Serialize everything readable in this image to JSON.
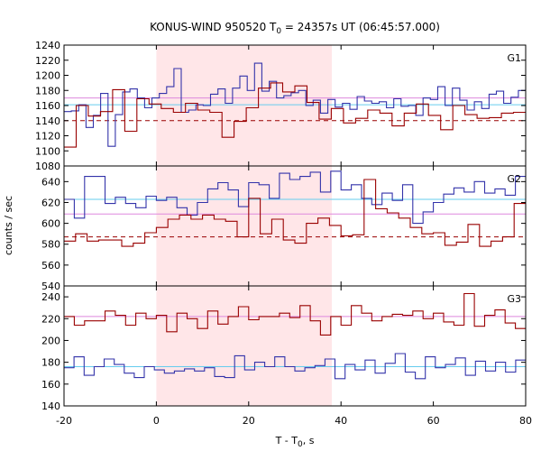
{
  "chart_data": {
    "type": "line",
    "title_text": "KONUS-WIND 950520 T",
    "title_sub": "0",
    "title_rest": " = 24357s UT (06:45:57.000)",
    "xlabel_main": "T - T",
    "xlabel_sub": "0",
    "xlabel_rest": ", s",
    "ylabel": "counts / sec",
    "xlim": [
      -20,
      80
    ],
    "xticks": [
      "-20",
      "0",
      "20",
      "40",
      "60",
      "80"
    ],
    "highlight_interval": [
      0,
      38
    ],
    "colors": {
      "blue": "#3333aa",
      "red": "#990000",
      "cyan": "#66ccee",
      "pink": "#dd88dd",
      "band": "#ffe6e8"
    },
    "panels": [
      {
        "label": "G1",
        "ylim": [
          1080,
          1240
        ],
        "yticks": [
          "1080",
          "1100",
          "1120",
          "1140",
          "1160",
          "1180",
          "1200",
          "1220",
          "1240"
        ],
        "blue_steps": [
          1152,
          1153,
          1161,
          1131,
          1147,
          1176,
          1106,
          1148,
          1178,
          1182,
          1170,
          1157,
          1170,
          1176,
          1185,
          1209,
          1151,
          1154,
          1161,
          1160,
          1175,
          1182,
          1163,
          1183,
          1199,
          1180,
          1216,
          1179,
          1192,
          1170,
          1173,
          1177,
          1180,
          1160,
          1167,
          1150,
          1168,
          1158,
          1163,
          1155,
          1172,
          1166,
          1163,
          1165,
          1157,
          1169,
          1159,
          1160,
          1147,
          1170,
          1168,
          1185,
          1160,
          1183,
          1167,
          1154,
          1165,
          1156,
          1175,
          1179,
          1163,
          1171,
          1180
        ],
        "red_steps": [
          1105,
          1160,
          1146,
          1152,
          1181,
          1126,
          1169,
          1162,
          1156,
          1151,
          1163,
          1154,
          1151,
          1118,
          1139,
          1157,
          1183,
          1190,
          1178,
          1186,
          1164,
          1142,
          1156,
          1137,
          1143,
          1154,
          1150,
          1133,
          1150,
          1162,
          1147,
          1128,
          1160,
          1148,
          1143,
          1144,
          1150,
          1151
        ],
        "cyan_level": 1161,
        "pink_level": 1170,
        "dashed_level": 1140
      },
      {
        "label": "G2",
        "ylim": [
          540,
          655
        ],
        "yticks": [
          "540",
          "560",
          "580",
          "600",
          "620",
          "640"
        ],
        "blue_steps": [
          623,
          605,
          645,
          645,
          619,
          625,
          619,
          615,
          626,
          622,
          625,
          615,
          608,
          620,
          633,
          639,
          632,
          616,
          639,
          637,
          624,
          648,
          642,
          645,
          649,
          630,
          650,
          632,
          637,
          624,
          618,
          629,
          622,
          637,
          600,
          611,
          620,
          628,
          634,
          630,
          640,
          629,
          633,
          627,
          645
        ],
        "red_steps": [
          583,
          590,
          583,
          584,
          584,
          578,
          581,
          591,
          596,
          604,
          608,
          604,
          608,
          604,
          602,
          587,
          624,
          590,
          604,
          584,
          581,
          600,
          605,
          598,
          588,
          589,
          642,
          614,
          610,
          605,
          596,
          590,
          591,
          579,
          582,
          599,
          578,
          583,
          587,
          619
        ],
        "cyan_level": 623,
        "pink_level": 609,
        "dashed_level": 587
      },
      {
        "label": "G3",
        "ylim": [
          140,
          250
        ],
        "yticks": [
          "140",
          "160",
          "180",
          "200",
          "220",
          "240"
        ],
        "blue_steps": [
          175,
          185,
          168,
          176,
          183,
          178,
          170,
          166,
          176,
          173,
          170,
          172,
          174,
          172,
          175,
          167,
          166,
          186,
          173,
          180,
          176,
          185,
          176,
          172,
          175,
          177,
          183,
          165,
          178,
          173,
          182,
          170,
          179,
          188,
          171,
          165,
          185,
          175,
          178,
          184,
          168,
          181,
          172,
          180,
          171,
          182
        ],
        "red_steps": [
          222,
          214,
          218,
          218,
          227,
          223,
          214,
          225,
          220,
          223,
          208,
          225,
          220,
          211,
          227,
          215,
          222,
          231,
          219,
          222,
          222,
          225,
          221,
          232,
          218,
          205,
          222,
          214,
          232,
          225,
          218,
          222,
          224,
          223,
          227,
          220,
          225,
          217,
          214,
          243,
          213,
          223,
          228,
          216,
          211
        ],
        "cyan_level": 176,
        "pink_level": 222
      }
    ]
  }
}
